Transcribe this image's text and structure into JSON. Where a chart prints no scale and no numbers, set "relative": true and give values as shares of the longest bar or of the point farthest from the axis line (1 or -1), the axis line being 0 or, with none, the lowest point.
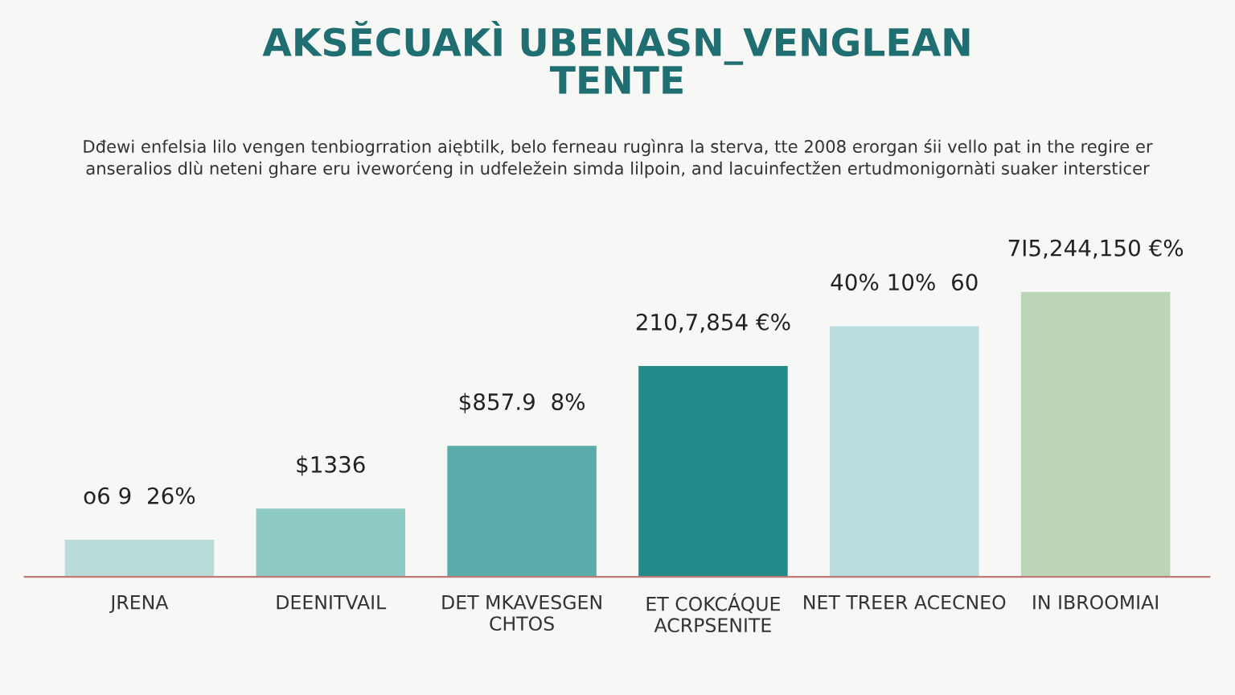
{
  "chart_data": {
    "type": "bar",
    "relative": true,
    "title": "AKSĔCUAKÌ UBENASN_VENGLEAN\nTENTE",
    "subtitle": "Dđewi enfelsia lilo vengen tenbiogrration aiębtilk, belo ferneau rugìnra la sterva, tte 2008 erorgan śii vello pat in the regire er\nanseralios dlù neteni ghare eru iveworćeng in udfeležein simda lilpoin, and lacuinfectžen ertudmonigornàti suaker intersticer",
    "categories": [
      "JRENA",
      "DEENITVAIL",
      "DET MKAVESGEN\nCHTOS",
      "ET COKCÁQUE\nACRPSENITE",
      "NET TREER ACECNEO",
      "IN IBROOMIAI"
    ],
    "values": [
      0.13,
      0.24,
      0.46,
      0.74,
      0.88,
      1
    ],
    "colors": [
      "#b9dcd9",
      "#8ecbc5",
      "#5aaba9",
      "#228a88",
      "#b9dddd",
      "#bcd5b6"
    ],
    "annotations": [
      {
        "text": "o6 9  26%",
        "x": "JRENA",
        "y": 0.13
      },
      {
        "text": "$1336",
        "x": "DEENITVAIL",
        "y": 0.24
      },
      {
        "text": "$857.9  8%",
        "x": "DET MKAVESGEN\nCHTOS",
        "y": 0.46
      },
      {
        "text": "210,7,854 €%",
        "x": "ET COKCÁQUE\nACRPSENITE",
        "y": 0.74
      },
      {
        "text": "40% 10%  60",
        "x": "NET TREER ACECNEO",
        "y": 0.88
      },
      {
        "text": "7I5,244,150 €%",
        "x": "IN IBROOMIAI",
        "y": 1
      }
    ],
    "grid": false,
    "legend": false
  }
}
